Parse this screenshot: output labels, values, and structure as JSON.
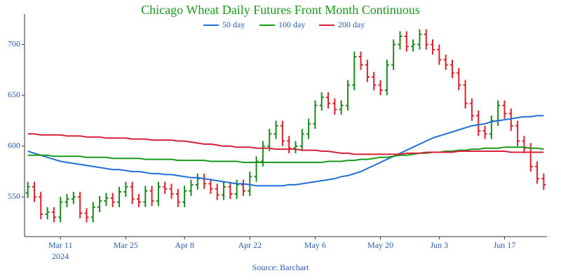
{
  "chart_data": {
    "type": "ohlc",
    "title": "Chicago Wheat Daily Futures Front Month Continuous",
    "source": "Source: Barchart",
    "x_year_label": "2024",
    "x": [
      "2024-03-04",
      "2024-03-05",
      "2024-03-06",
      "2024-03-07",
      "2024-03-08",
      "2024-03-11",
      "2024-03-12",
      "2024-03-13",
      "2024-03-14",
      "2024-03-15",
      "2024-03-18",
      "2024-03-19",
      "2024-03-20",
      "2024-03-21",
      "2024-03-22",
      "2024-03-25",
      "2024-03-26",
      "2024-03-27",
      "2024-03-28",
      "2024-04-01",
      "2024-04-02",
      "2024-04-03",
      "2024-04-04",
      "2024-04-05",
      "2024-04-08",
      "2024-04-09",
      "2024-04-10",
      "2024-04-11",
      "2024-04-12",
      "2024-04-15",
      "2024-04-16",
      "2024-04-17",
      "2024-04-18",
      "2024-04-19",
      "2024-04-22",
      "2024-04-23",
      "2024-04-24",
      "2024-04-25",
      "2024-04-26",
      "2024-04-29",
      "2024-04-30",
      "2024-05-01",
      "2024-05-02",
      "2024-05-03",
      "2024-05-06",
      "2024-05-07",
      "2024-05-08",
      "2024-05-09",
      "2024-05-10",
      "2024-05-13",
      "2024-05-14",
      "2024-05-15",
      "2024-05-16",
      "2024-05-17",
      "2024-05-20",
      "2024-05-21",
      "2024-05-22",
      "2024-05-23",
      "2024-05-24",
      "2024-05-28",
      "2024-05-29",
      "2024-05-30",
      "2024-05-31",
      "2024-06-03",
      "2024-06-04",
      "2024-06-05",
      "2024-06-06",
      "2024-06-07",
      "2024-06-10",
      "2024-06-11",
      "2024-06-12",
      "2024-06-13",
      "2024-06-14",
      "2024-06-17",
      "2024-06-18",
      "2024-06-20",
      "2024-06-21",
      "2024-06-24",
      "2024-06-25",
      "2024-06-26"
    ],
    "open": [
      554,
      560,
      550,
      533,
      535,
      530,
      545,
      548,
      550,
      534,
      530,
      540,
      546,
      549,
      545,
      555,
      560,
      548,
      545,
      556,
      546,
      560,
      558,
      553,
      545,
      556,
      562,
      568,
      563,
      558,
      552,
      560,
      553,
      562,
      556,
      570,
      585,
      600,
      612,
      620,
      605,
      598,
      600,
      612,
      622,
      640,
      648,
      642,
      636,
      640,
      660,
      688,
      680,
      668,
      660,
      655,
      680,
      700,
      708,
      698,
      700,
      710,
      700,
      695,
      685,
      680,
      672,
      660,
      642,
      630,
      615,
      612,
      625,
      640,
      632,
      620,
      605,
      598,
      580,
      568
    ],
    "high": [
      565,
      565,
      555,
      540,
      540,
      550,
      553,
      555,
      555,
      539,
      545,
      551,
      554,
      554,
      560,
      565,
      565,
      553,
      561,
      561,
      565,
      565,
      563,
      558,
      561,
      567,
      573,
      573,
      568,
      563,
      565,
      565,
      567,
      567,
      575,
      590,
      605,
      617,
      625,
      625,
      610,
      605,
      617,
      627,
      645,
      653,
      653,
      647,
      645,
      665,
      693,
      693,
      685,
      673,
      665,
      685,
      705,
      713,
      713,
      705,
      715,
      715,
      705,
      700,
      690,
      685,
      677,
      665,
      647,
      635,
      620,
      630,
      645,
      645,
      637,
      625,
      610,
      603,
      585,
      573
    ],
    "low": [
      549,
      545,
      528,
      528,
      525,
      525,
      540,
      543,
      529,
      525,
      525,
      535,
      541,
      540,
      540,
      550,
      543,
      540,
      540,
      541,
      541,
      553,
      548,
      540,
      540,
      551,
      557,
      558,
      553,
      547,
      547,
      548,
      548,
      551,
      551,
      565,
      580,
      595,
      607,
      600,
      593,
      593,
      595,
      607,
      617,
      635,
      637,
      631,
      631,
      635,
      655,
      675,
      663,
      655,
      650,
      650,
      675,
      695,
      693,
      693,
      695,
      695,
      690,
      680,
      675,
      667,
      655,
      637,
      625,
      610,
      607,
      607,
      620,
      627,
      615,
      600,
      593,
      575,
      563,
      557
    ],
    "close": [
      560,
      550,
      533,
      535,
      530,
      545,
      548,
      550,
      534,
      530,
      540,
      546,
      549,
      545,
      555,
      560,
      548,
      545,
      556,
      546,
      560,
      558,
      553,
      545,
      556,
      562,
      568,
      563,
      558,
      552,
      560,
      553,
      562,
      556,
      570,
      585,
      600,
      612,
      620,
      605,
      598,
      600,
      612,
      622,
      640,
      648,
      642,
      636,
      640,
      660,
      688,
      680,
      668,
      660,
      655,
      680,
      700,
      708,
      698,
      700,
      710,
      700,
      695,
      685,
      680,
      672,
      660,
      642,
      630,
      615,
      612,
      625,
      640,
      632,
      620,
      605,
      598,
      580,
      568,
      562
    ],
    "up_color": "#1a8a1a",
    "down_color": "#e0202a",
    "series": [
      {
        "name": "50 day",
        "color": "#1f6fd6",
        "values": [
          595,
          593,
          591,
          589,
          587,
          585,
          584,
          583,
          582,
          581,
          580,
          579,
          578,
          577,
          577,
          576,
          575,
          575,
          574,
          573,
          573,
          572,
          572,
          571,
          570,
          569,
          569,
          568,
          567,
          566,
          565,
          564,
          563,
          563,
          562,
          561,
          561,
          561,
          561,
          561,
          562,
          562,
          563,
          564,
          565,
          566,
          567,
          568,
          570,
          571,
          573,
          575,
          578,
          581,
          584,
          587,
          590,
          593,
          596,
          599,
          602,
          605,
          608,
          610,
          612,
          614,
          616,
          618,
          620,
          621,
          622,
          624,
          625,
          626,
          627,
          628,
          629,
          629,
          630,
          630
        ]
      },
      {
        "name": "100 day",
        "color": "#1a9a1a",
        "values": [
          591,
          591,
          591,
          591,
          590,
          590,
          590,
          590,
          590,
          589,
          589,
          589,
          589,
          588,
          588,
          588,
          588,
          588,
          587,
          587,
          587,
          587,
          587,
          586,
          586,
          586,
          586,
          586,
          585,
          585,
          585,
          585,
          585,
          584,
          584,
          584,
          584,
          584,
          584,
          584,
          584,
          584,
          584,
          584,
          584,
          584,
          585,
          585,
          585,
          586,
          586,
          587,
          587,
          588,
          589,
          589,
          590,
          591,
          591,
          592,
          593,
          593,
          594,
          594,
          595,
          595,
          596,
          596,
          597,
          597,
          598,
          598,
          598,
          599,
          599,
          599,
          599,
          598,
          598,
          597
        ]
      },
      {
        "name": "200 day",
        "color": "#d8203a",
        "values": [
          612,
          612,
          611,
          611,
          611,
          611,
          610,
          610,
          610,
          609,
          609,
          609,
          608,
          608,
          608,
          608,
          607,
          607,
          607,
          606,
          606,
          606,
          606,
          605,
          605,
          604,
          603,
          602,
          602,
          601,
          600,
          600,
          599,
          599,
          599,
          598,
          598,
          598,
          597,
          597,
          597,
          597,
          596,
          596,
          596,
          595,
          595,
          594,
          593,
          593,
          592,
          592,
          592,
          592,
          592,
          592,
          592,
          592,
          593,
          593,
          593,
          594,
          594,
          594,
          594,
          594,
          595,
          595,
          595,
          595,
          595,
          595,
          595,
          595,
          594,
          594,
          594,
          594,
          594,
          594
        ]
      }
    ],
    "ylim": [
      511,
      730
    ],
    "yticks": [
      550,
      600,
      650,
      700
    ],
    "xticks": [
      {
        "value": "2024-03-11",
        "label": "Mar 11"
      },
      {
        "value": "2024-03-25",
        "label": "Mar 25"
      },
      {
        "value": "2024-04-08",
        "label": "Apr 8"
      },
      {
        "value": "2024-04-22",
        "label": "Apr 22"
      },
      {
        "value": "2024-05-06",
        "label": "May 6"
      },
      {
        "value": "2024-05-20",
        "label": "May 20"
      },
      {
        "value": "2024-06-03",
        "label": "Jun 3"
      },
      {
        "value": "2024-06-17",
        "label": "Jun 17"
      }
    ],
    "legend": "top"
  }
}
